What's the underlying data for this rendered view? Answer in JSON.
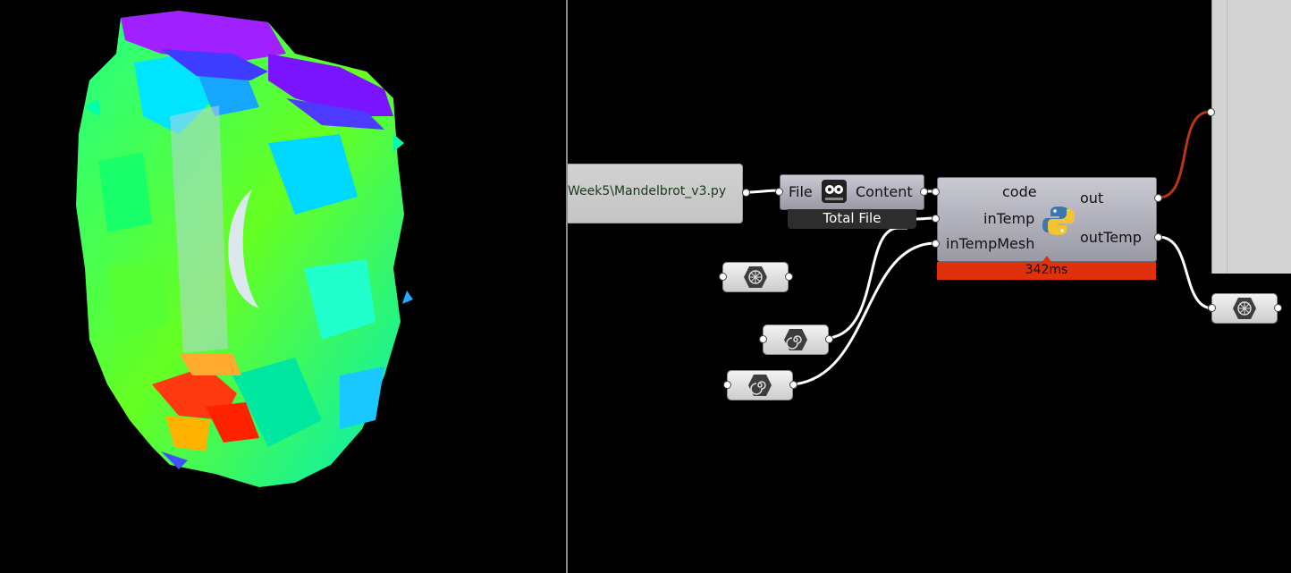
{
  "file_path_panel": {
    "text": "Week5\\Mandelbrot_v3.py"
  },
  "file_component": {
    "input_label": "File",
    "output_label": "Content",
    "mode_tag": "Total File"
  },
  "python_component": {
    "inputs": [
      "code",
      "inTemp",
      "inTempMesh"
    ],
    "outputs": [
      "out",
      "outTemp"
    ],
    "runtime": "342ms"
  },
  "params": {
    "mesh_param_icon": "mesh-icon",
    "spiral_param_icon": "spiral-icon"
  },
  "colors": {
    "canvas_bg": "#000000",
    "component_fill": "#a8a8b2",
    "timer_bar": "#e0310d",
    "wire": "#ffffff",
    "wire_error": "#b83610"
  }
}
